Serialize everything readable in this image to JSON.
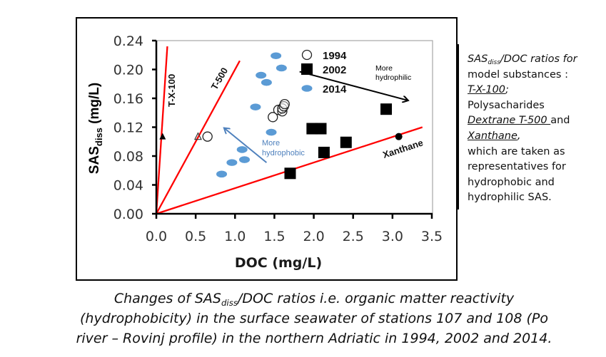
{
  "chart_data": {
    "type": "scatter",
    "title": "",
    "xlabel": "DOC (mg/L)",
    "ylabel": {
      "main": "SAS",
      "sub": "diss",
      "unit": " (mg/L)"
    },
    "xlim": [
      0,
      3.5
    ],
    "ylim": [
      0,
      0.24
    ],
    "xticks": [
      "0.0",
      "0.5",
      "1.0",
      "1.5",
      "2.0",
      "2.5",
      "3.0",
      "3.5"
    ],
    "xtick_values": [
      0,
      0.5,
      1.0,
      1.5,
      2.0,
      2.5,
      3.0,
      3.5
    ],
    "yticks": [
      "0.00",
      "0.04",
      "0.08",
      "0.12",
      "0.16",
      "0.20",
      "0.24"
    ],
    "ytick_values": [
      0,
      0.04,
      0.08,
      0.12,
      0.16,
      0.2,
      0.24
    ],
    "grid": false,
    "legend_position": "top-center",
    "series": [
      {
        "name": "1994",
        "marker": "open-circle",
        "color": "#000000",
        "points": [
          [
            0.65,
            0.107
          ],
          [
            1.48,
            0.134
          ],
          [
            1.55,
            0.144
          ],
          [
            1.6,
            0.142
          ],
          [
            1.6,
            0.146
          ],
          [
            1.62,
            0.149
          ],
          [
            1.63,
            0.152
          ]
        ]
      },
      {
        "name": "2002",
        "marker": "filled-square",
        "color": "#000000",
        "points": [
          [
            1.7,
            0.056
          ],
          [
            1.98,
            0.118
          ],
          [
            2.09,
            0.118
          ],
          [
            2.13,
            0.085
          ],
          [
            2.41,
            0.099
          ],
          [
            2.92,
            0.145
          ]
        ]
      },
      {
        "name": "2014",
        "marker": "filled-ellipse",
        "color": "#5b9bd5",
        "points": [
          [
            1.52,
            0.219
          ],
          [
            1.59,
            0.202
          ],
          [
            1.33,
            0.192
          ],
          [
            1.4,
            0.182
          ],
          [
            1.26,
            0.148
          ],
          [
            1.46,
            0.113
          ],
          [
            1.09,
            0.089
          ],
          [
            1.12,
            0.075
          ],
          [
            0.96,
            0.071
          ],
          [
            0.83,
            0.055
          ]
        ]
      }
    ],
    "reference_lines": [
      {
        "name": "T-X-100",
        "color": "#ff0000",
        "from": [
          0,
          0
        ],
        "to": [
          0.14,
          0.232
        ],
        "label": "T-X-100",
        "marker": {
          "type": "filled-triangle",
          "point": [
            0.08,
            0.107
          ]
        }
      },
      {
        "name": "T-500",
        "color": "#ff0000",
        "from": [
          0,
          0
        ],
        "to": [
          1.06,
          0.212
        ],
        "label": "T-500",
        "marker": {
          "type": "open-triangle",
          "point": [
            0.53,
            0.107
          ]
        }
      },
      {
        "name": "Xanthane",
        "color": "#ff0000",
        "from": [
          0,
          0
        ],
        "to": [
          3.38,
          0.12
        ],
        "label": "Xanthane",
        "marker": {
          "type": "filled-dot",
          "point": [
            3.08,
            0.107
          ]
        }
      }
    ],
    "annotations": [
      {
        "text": [
          "More",
          "hydrophilic"
        ],
        "color": "#000000",
        "arrow_from": [
          1.82,
          0.197
        ],
        "arrow_to": [
          3.2,
          0.157
        ]
      },
      {
        "text": [
          "More",
          "hydrophobic"
        ],
        "color": "#4f81bd",
        "arrow_from": [
          1.4,
          0.071
        ],
        "arrow_to": [
          0.86,
          0.119
        ]
      }
    ]
  },
  "side_note": {
    "ratio_main": "SAS",
    "ratio_sub": "diss",
    "ratio_rest": "/DOC  ratios for",
    "line2": "model substances :",
    "txx": "T-X-100",
    "txx_after": ";",
    "line4": "Polysacharides",
    "dextrane": "Dextrane T-500 ",
    "dextrane_after": "and",
    "xanthane": "Xanthane",
    "xanthane_after": ",",
    "line7": "which are taken as",
    "line8": "representatives for",
    "line9": "hydrophobic and",
    "line10": "hydrophilic SAS."
  },
  "caption": {
    "part1": "Changes of SAS",
    "sub": "diss",
    "part2": "/DOC  ratios i.e. organic matter reactivity",
    "line2": "(hydrophobicity) in the surface seawater of stations 107 and 108 (Po",
    "line3": "river – Rovinj profile) in the northern Adriatic in 1994, 2002 and 2014."
  }
}
